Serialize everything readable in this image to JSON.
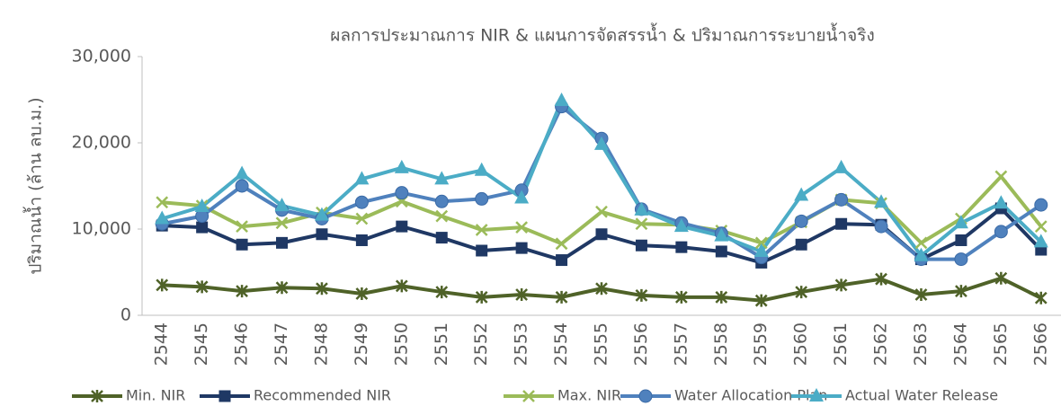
{
  "chart_data": {
    "type": "line",
    "title": "ผลการประมาณการ NIR & แผนการจัดสรรน้ำ & ปริมาณการระบายน้ำจริง",
    "y_label": "ปริมาณน้ำ (ล้าน ลบ.ม.)",
    "categories": [
      "2544",
      "2545",
      "2546",
      "2547",
      "2548",
      "2549",
      "2550",
      "2551",
      "2552",
      "2553",
      "2554",
      "2555",
      "2556",
      "2557",
      "2558",
      "2559",
      "2560",
      "2561",
      "2562",
      "2563",
      "2564",
      "2565",
      "2566"
    ],
    "ylim": [
      0,
      30000
    ],
    "yticks": [
      0,
      {
        "value": 10000,
        "label": "10,000"
      },
      {
        "value": 20000,
        "label": "20,000"
      },
      {
        "value": 30000,
        "label": "30,000"
      }
    ],
    "grid": false,
    "legend": "bottom",
    "series": [
      {
        "name": "Min. NIR",
        "color": "#4f6228",
        "marker": "star",
        "values": [
          3500,
          3300,
          2800,
          3200,
          3100,
          2500,
          3400,
          2700,
          2100,
          2400,
          2100,
          3100,
          2300,
          2100,
          2100,
          1700,
          2700,
          3500,
          4200,
          2400,
          2800,
          4300,
          2000
        ]
      },
      {
        "name": "Recommended NIR",
        "color": "#1f3864",
        "marker": "square",
        "values": [
          10400,
          10200,
          8200,
          8400,
          9400,
          8700,
          10300,
          9000,
          7500,
          7800,
          6400,
          9400,
          8100,
          7900,
          7400,
          6100,
          8200,
          10600,
          10500,
          6500,
          8700,
          12400,
          7600
        ]
      },
      {
        "name": "Max. NIR",
        "color": "#9bbb59",
        "marker": "x",
        "values": [
          13100,
          12700,
          10300,
          10700,
          11900,
          11200,
          13200,
          11500,
          9900,
          10200,
          8300,
          12000,
          10600,
          10500,
          9800,
          8400,
          10800,
          13400,
          13000,
          8400,
          11200,
          16100,
          10300
        ]
      },
      {
        "name": "Water Allocation Plan",
        "color": "#4f81bd",
        "marker": "circle",
        "values": [
          10600,
          11500,
          15000,
          12200,
          11200,
          13100,
          14200,
          13200,
          13500,
          14500,
          24200,
          20500,
          12300,
          10700,
          9500,
          6700,
          10900,
          13400,
          10300,
          6500,
          6500,
          9700,
          12800
        ]
      },
      {
        "name": "Actual Water Release",
        "color": "#4bacc6",
        "marker": "triangle",
        "values": [
          11200,
          12600,
          16400,
          12700,
          11600,
          15800,
          17100,
          15800,
          16800,
          13600,
          24900,
          19800,
          12200,
          10300,
          9200,
          7400,
          13900,
          17100,
          13100,
          6900,
          10700,
          13000,
          8500
        ]
      }
    ]
  }
}
